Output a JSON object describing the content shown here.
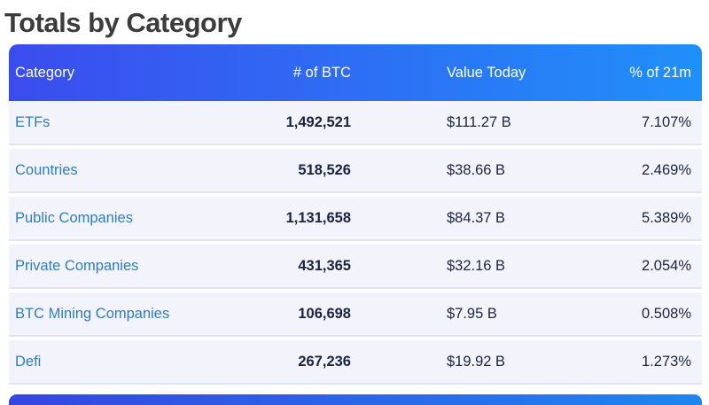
{
  "page": {
    "title": "Totals by Category"
  },
  "colors": {
    "header_gradient_start": "#3b4cee",
    "header_gradient_end": "#2090f9",
    "row_background": "#f3f4fb",
    "row_divider": "#e2e4f3",
    "category_link": "#2f7cc0",
    "value_text": "#1b2340",
    "title_text": "#3c3c3c"
  },
  "table": {
    "columns": {
      "category": "Category",
      "btc": "# of BTC",
      "value": "Value Today",
      "pct": "% of 21m"
    },
    "rows": [
      {
        "category": "ETFs",
        "btc": "1,492,521",
        "value": "$111.27 B",
        "pct": "7.107%"
      },
      {
        "category": "Countries",
        "btc": "518,526",
        "value": "$38.66 B",
        "pct": "2.469%"
      },
      {
        "category": "Public Companies",
        "btc": "1,131,658",
        "value": "$84.37 B",
        "pct": "5.389%"
      },
      {
        "category": "Private Companies",
        "btc": "431,365",
        "value": "$32.16 B",
        "pct": "2.054%"
      },
      {
        "category": "BTC Mining Companies",
        "btc": "106,698",
        "value": "$7.95 B",
        "pct": "0.508%"
      },
      {
        "category": "Defi",
        "btc": "267,236",
        "value": "$19.92 B",
        "pct": "1.273%"
      }
    ]
  }
}
